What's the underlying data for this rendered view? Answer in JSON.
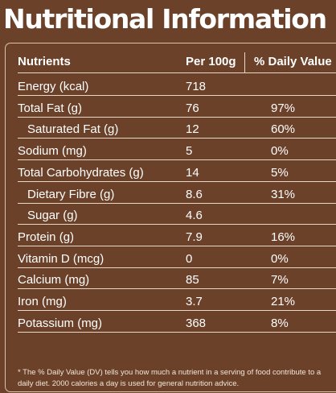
{
  "title": "Nutritional Information",
  "headers": {
    "nutrients": "Nutrients",
    "per100g": "Per 100g",
    "dailyValue": "% Daily Value"
  },
  "rows": [
    {
      "name": "Energy (kcal)",
      "per100g": "718",
      "dv": "",
      "indent": false
    },
    {
      "name": "Total Fat (g)",
      "per100g": "76",
      "dv": "97%",
      "indent": false
    },
    {
      "name": "Saturated Fat (g)",
      "per100g": "12",
      "dv": "60%",
      "indent": true
    },
    {
      "name": "Sodium (mg)",
      "per100g": "5",
      "dv": "0%",
      "indent": false
    },
    {
      "name": "Total Carbohydrates (g)",
      "per100g": "14",
      "dv": "5%",
      "indent": false
    },
    {
      "name": "Dietary Fibre (g)",
      "per100g": "8.6",
      "dv": "31%",
      "indent": true
    },
    {
      "name": "Sugar (g)",
      "per100g": "4.6",
      "dv": "",
      "indent": true
    },
    {
      "name": "Protein (g)",
      "per100g": "7.9",
      "dv": "16%",
      "indent": false
    },
    {
      "name": "Vitamin D (mcg)",
      "per100g": "0",
      "dv": "0%",
      "indent": false
    },
    {
      "name": "Calcium (mg)",
      "per100g": "85",
      "dv": "7%",
      "indent": false
    },
    {
      "name": "Iron (mg)",
      "per100g": "3.7",
      "dv": "21%",
      "indent": false
    },
    {
      "name": "Potassium (mg)",
      "per100g": "368",
      "dv": "8%",
      "indent": false
    }
  ],
  "footnote": "* The % Daily Value (DV) tells you how much a nutrient in a serving of food contribute to a daily diet. 2000 calories a day is used for general nutrition advice.",
  "colors": {
    "background": "#6b4129",
    "text": "#ffffff",
    "rule": "#e8d8c8"
  }
}
